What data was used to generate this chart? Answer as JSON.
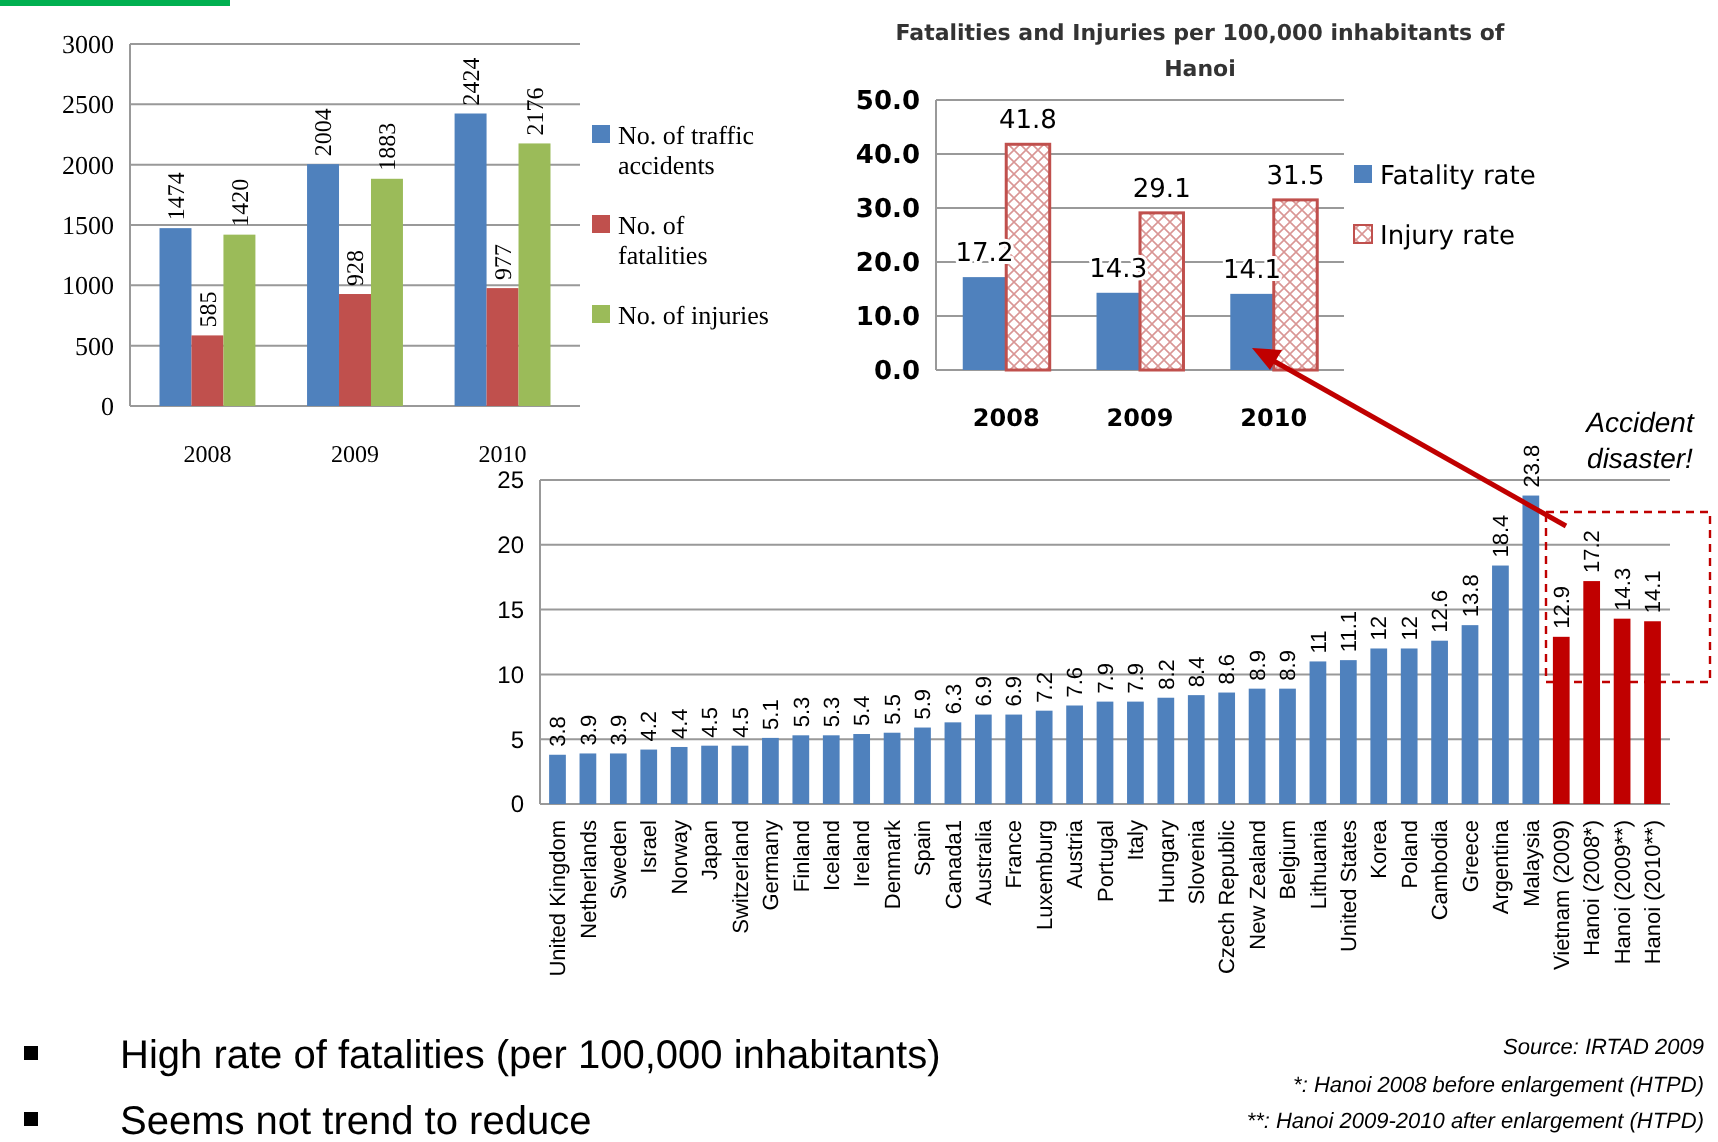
{
  "chart_data": [
    {
      "type": "bar",
      "categories": [
        "2008",
        "2009",
        "2010"
      ],
      "ylim": [
        0,
        3000
      ],
      "yticks": [
        0,
        500,
        1000,
        1500,
        2000,
        2500,
        3000
      ],
      "grid": "y",
      "legend": "right",
      "data_labels": true,
      "series": [
        {
          "name": "No. of traffic accidents",
          "color": "#4f81bd",
          "values": [
            1474,
            2004,
            2424
          ]
        },
        {
          "name": "No. of fatalities",
          "color": "#c0504d",
          "values": [
            585,
            928,
            977
          ]
        },
        {
          "name": "No. of injuries",
          "color": "#9bbb59",
          "values": [
            1420,
            1883,
            2176
          ]
        }
      ]
    },
    {
      "type": "bar",
      "title": "Fatalities and Injuries  per 100,000  inhabitants of Hanoi",
      "categories": [
        "2008",
        "2009",
        "2010"
      ],
      "ylim": [
        0,
        50
      ],
      "yticks": [
        {
          "value": 0,
          "label": "0.0"
        },
        {
          "value": 10,
          "label": "10.0"
        },
        {
          "value": 20,
          "label": "20.0"
        },
        {
          "value": 30,
          "label": "30.0"
        },
        {
          "value": 40,
          "label": "40.0"
        },
        {
          "value": 50,
          "label": "50.0"
        }
      ],
      "grid": "y",
      "legend": "right",
      "data_labels": true,
      "series": [
        {
          "name": "Fatality rate",
          "color": "#4f81bd",
          "values": [
            17.2,
            14.3,
            14.1
          ]
        },
        {
          "name": "Injury rate",
          "color": "#c0504d",
          "values": [
            41.8,
            29.1,
            31.5
          ]
        }
      ]
    },
    {
      "type": "bar",
      "categories": [
        "United Kingdom",
        "Netherlands",
        "Sweden",
        "Israel",
        "Norway",
        "Japan",
        "Switzerland",
        "Germany",
        "Finland",
        "Iceland",
        "Ireland",
        "Denmark",
        "Spain",
        "Canada1",
        "Australia",
        "France",
        "Luxemburg",
        "Austria",
        "Portugal",
        "Italy",
        "Hungary",
        "Slovenia",
        "Czech Republic",
        "New Zealand",
        "Belgium",
        "Lithuania",
        "United States",
        "Korea",
        "Poland",
        "Cambodia",
        "Greece",
        "Argentina",
        "Malaysia",
        "Vietnam (2009)",
        "Hanoi (2008*)",
        "Hanoi (2009**)",
        "Hanoi (2010**)"
      ],
      "values": [
        3.8,
        3.9,
        3.9,
        4.2,
        4.4,
        4.5,
        4.5,
        5.1,
        5.3,
        5.3,
        5.4,
        5.5,
        5.9,
        6.3,
        6.9,
        6.9,
        7.2,
        7.6,
        7.9,
        7.9,
        8.2,
        8.4,
        8.6,
        8.9,
        8.9,
        11,
        11.1,
        12,
        12,
        12.6,
        13.8,
        18.4,
        23.8,
        12.9,
        17.2,
        14.3,
        14.1
      ],
      "colors": [
        "#4f81bd",
        "#4f81bd",
        "#4f81bd",
        "#4f81bd",
        "#4f81bd",
        "#4f81bd",
        "#4f81bd",
        "#4f81bd",
        "#4f81bd",
        "#4f81bd",
        "#4f81bd",
        "#4f81bd",
        "#4f81bd",
        "#4f81bd",
        "#4f81bd",
        "#4f81bd",
        "#4f81bd",
        "#4f81bd",
        "#4f81bd",
        "#4f81bd",
        "#4f81bd",
        "#4f81bd",
        "#4f81bd",
        "#4f81bd",
        "#4f81bd",
        "#4f81bd",
        "#4f81bd",
        "#4f81bd",
        "#4f81bd",
        "#4f81bd",
        "#4f81bd",
        "#4f81bd",
        "#4f81bd",
        "#c00000",
        "#c00000",
        "#c00000",
        "#c00000"
      ],
      "ylim": [
        0,
        25
      ],
      "yticks": [
        0,
        5,
        10,
        15,
        20,
        25
      ],
      "grid": "y",
      "data_labels": true,
      "annotations": [
        "Accident disaster!",
        "High rate of fatalities (per 100,000 inhabitants)",
        "Seems not trend to reduce",
        "Source: IRTAD 2009",
        "*: Hanoi 2008 before enlargement (HTPD)",
        "**: Hanoi 2009-2010 after enlargement (HTPD)"
      ]
    }
  ]
}
